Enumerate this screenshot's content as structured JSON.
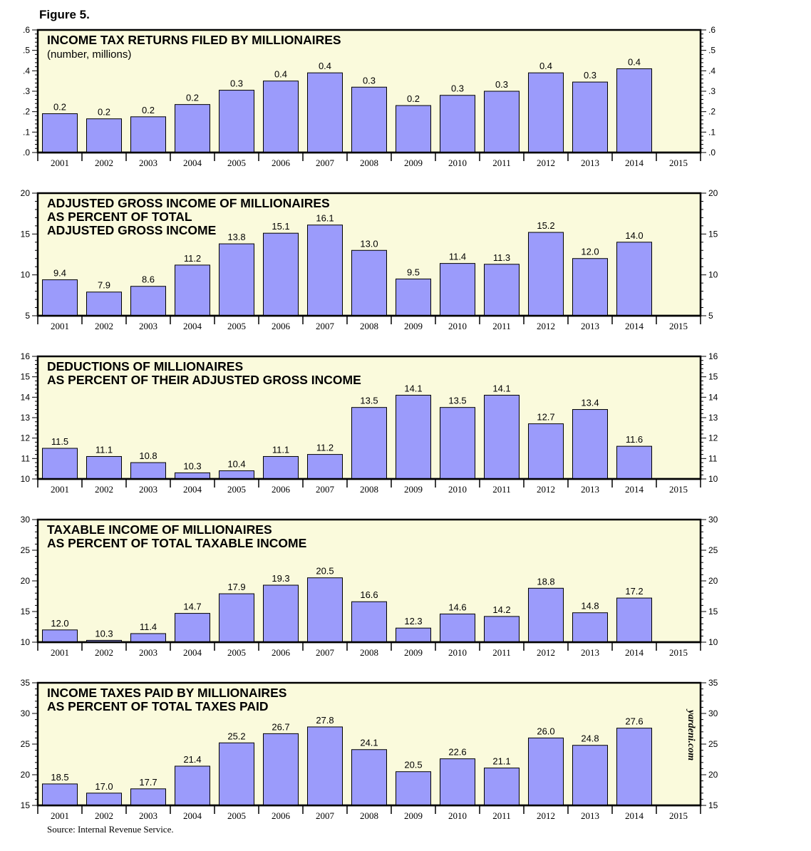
{
  "figure_label": "Figure 5.",
  "source_note": "Source: Internal Revenue Service.",
  "watermark": "yardeni.com",
  "colors": {
    "panel_bg": "#fafadc",
    "bar_fill": "#9b9bfb",
    "bar_stroke": "#000000"
  },
  "chart_data": [
    {
      "type": "bar",
      "title": [
        "INCOME TAX RETURNS FILED BY MILLIONAIRES"
      ],
      "subtitle": "(number, millions)",
      "categories": [
        "2001",
        "2002",
        "2003",
        "2004",
        "2005",
        "2006",
        "2007",
        "2008",
        "2009",
        "2010",
        "2011",
        "2012",
        "2013",
        "2014",
        "2015"
      ],
      "values": [
        0.19,
        0.165,
        0.175,
        0.235,
        0.305,
        0.35,
        0.39,
        0.32,
        0.23,
        0.28,
        0.3,
        0.39,
        0.345,
        0.41,
        null
      ],
      "labels": [
        "0.2",
        "0.2",
        "0.2",
        "0.2",
        "0.3",
        "0.4",
        "0.4",
        "0.3",
        "0.2",
        "0.3",
        "0.3",
        "0.4",
        "0.3",
        "0.4",
        ""
      ],
      "ylim": [
        0,
        0.6
      ],
      "yticks": [
        0,
        0.1,
        0.2,
        0.3,
        0.4,
        0.5,
        0.6
      ],
      "ytick_labels": [
        ".0",
        ".1",
        ".2",
        ".3",
        ".4",
        ".5",
        ".6"
      ],
      "grid": false
    },
    {
      "type": "bar",
      "title": [
        "ADJUSTED GROSS INCOME OF MILLIONAIRES",
        "AS PERCENT OF TOTAL",
        "ADJUSTED GROSS INCOME"
      ],
      "subtitle": "",
      "categories": [
        "2001",
        "2002",
        "2003",
        "2004",
        "2005",
        "2006",
        "2007",
        "2008",
        "2009",
        "2010",
        "2011",
        "2012",
        "2013",
        "2014",
        "2015"
      ],
      "values": [
        9.4,
        7.9,
        8.6,
        11.2,
        13.8,
        15.1,
        16.1,
        13.0,
        9.5,
        11.4,
        11.3,
        15.2,
        12.0,
        14.0,
        null
      ],
      "labels": [
        "9.4",
        "7.9",
        "8.6",
        "11.2",
        "13.8",
        "15.1",
        "16.1",
        "13.0",
        "9.5",
        "11.4",
        "11.3",
        "15.2",
        "12.0",
        "14.0",
        ""
      ],
      "ylim": [
        5,
        20
      ],
      "yticks": [
        5,
        10,
        15,
        20
      ],
      "ytick_labels": [
        "5",
        "10",
        "15",
        "20"
      ],
      "grid": false
    },
    {
      "type": "bar",
      "title": [
        "DEDUCTIONS OF MILLIONAIRES",
        "AS PERCENT OF THEIR ADJUSTED GROSS INCOME"
      ],
      "subtitle": "",
      "categories": [
        "2001",
        "2002",
        "2003",
        "2004",
        "2005",
        "2006",
        "2007",
        "2008",
        "2009",
        "2010",
        "2011",
        "2012",
        "2013",
        "2014",
        "2015"
      ],
      "values": [
        11.5,
        11.1,
        10.8,
        10.3,
        10.4,
        11.1,
        11.2,
        13.5,
        14.1,
        13.5,
        14.1,
        12.7,
        13.4,
        11.6,
        null
      ],
      "labels": [
        "11.5",
        "11.1",
        "10.8",
        "10.3",
        "10.4",
        "11.1",
        "11.2",
        "13.5",
        "14.1",
        "13.5",
        "14.1",
        "12.7",
        "13.4",
        "11.6",
        ""
      ],
      "ylim": [
        10,
        16
      ],
      "yticks": [
        10,
        11,
        12,
        13,
        14,
        15,
        16
      ],
      "ytick_labels": [
        "10",
        "11",
        "12",
        "13",
        "14",
        "15",
        "16"
      ],
      "grid": false
    },
    {
      "type": "bar",
      "title": [
        "TAXABLE INCOME OF MILLIONAIRES",
        "AS PERCENT OF TOTAL TAXABLE INCOME"
      ],
      "subtitle": "",
      "categories": [
        "2001",
        "2002",
        "2003",
        "2004",
        "2005",
        "2006",
        "2007",
        "2008",
        "2009",
        "2010",
        "2011",
        "2012",
        "2013",
        "2014",
        "2015"
      ],
      "values": [
        12.0,
        10.3,
        11.4,
        14.7,
        17.9,
        19.3,
        20.5,
        16.6,
        12.3,
        14.6,
        14.2,
        18.8,
        14.8,
        17.2,
        null
      ],
      "labels": [
        "12.0",
        "10.3",
        "11.4",
        "14.7",
        "17.9",
        "19.3",
        "20.5",
        "16.6",
        "12.3",
        "14.6",
        "14.2",
        "18.8",
        "14.8",
        "17.2",
        ""
      ],
      "ylim": [
        10,
        30
      ],
      "yticks": [
        10,
        15,
        20,
        25,
        30
      ],
      "ytick_labels": [
        "10",
        "15",
        "20",
        "25",
        "30"
      ],
      "grid": false
    },
    {
      "type": "bar",
      "title": [
        "INCOME TAXES PAID BY MILLIONAIRES",
        "AS PERCENT OF TOTAL TAXES PAID"
      ],
      "subtitle": "",
      "categories": [
        "2001",
        "2002",
        "2003",
        "2004",
        "2005",
        "2006",
        "2007",
        "2008",
        "2009",
        "2010",
        "2011",
        "2012",
        "2013",
        "2014",
        "2015"
      ],
      "values": [
        18.5,
        17.0,
        17.7,
        21.4,
        25.2,
        26.7,
        27.8,
        24.1,
        20.5,
        22.6,
        21.1,
        26.0,
        24.8,
        27.6,
        null
      ],
      "labels": [
        "18.5",
        "17.0",
        "17.7",
        "21.4",
        "25.2",
        "26.7",
        "27.8",
        "24.1",
        "20.5",
        "22.6",
        "21.1",
        "26.0",
        "24.8",
        "27.6",
        ""
      ],
      "ylim": [
        15,
        35
      ],
      "yticks": [
        15,
        20,
        25,
        30,
        35
      ],
      "ytick_labels": [
        "15",
        "20",
        "25",
        "30",
        "35"
      ],
      "grid": false
    }
  ]
}
